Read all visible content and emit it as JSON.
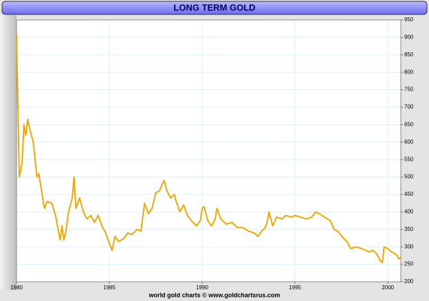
{
  "chart_data": {
    "type": "line",
    "title": "LONG TERM GOLD",
    "footer": "world gold charts © www.goldchartsrus.com",
    "color": "#f0a800",
    "grid": true,
    "xlim": [
      1980,
      2000.7
    ],
    "xticks": [
      1980,
      1985,
      1990,
      1995,
      2000
    ],
    "ylim": [
      200,
      950
    ],
    "yticks": [
      200,
      250,
      300,
      350,
      400,
      450,
      500,
      550,
      600,
      650,
      700,
      750,
      800,
      850,
      900,
      950
    ],
    "x": [
      1980.0,
      1980.15,
      1980.3,
      1980.4,
      1980.5,
      1980.6,
      1980.75,
      1980.9,
      1981.1,
      1981.2,
      1981.35,
      1981.5,
      1981.65,
      1981.9,
      1982.1,
      1982.35,
      1982.45,
      1982.55,
      1982.65,
      1982.8,
      1983.0,
      1983.1,
      1983.2,
      1983.4,
      1983.6,
      1983.8,
      1984.0,
      1984.2,
      1984.4,
      1984.6,
      1984.8,
      1985.0,
      1985.15,
      1985.3,
      1985.5,
      1985.8,
      1986.0,
      1986.2,
      1986.5,
      1986.7,
      1986.9,
      1987.1,
      1987.3,
      1987.5,
      1987.7,
      1987.85,
      1987.95,
      1988.1,
      1988.3,
      1988.5,
      1988.6,
      1988.8,
      1989.0,
      1989.2,
      1989.5,
      1989.7,
      1989.9,
      1990.0,
      1990.1,
      1990.3,
      1990.5,
      1990.7,
      1990.8,
      1991.0,
      1991.3,
      1991.6,
      1991.9,
      1992.2,
      1992.5,
      1992.8,
      1993.0,
      1993.2,
      1993.4,
      1993.5,
      1993.6,
      1993.8,
      1994.0,
      1994.3,
      1994.5,
      1994.8,
      1995.0,
      1995.3,
      1995.6,
      1995.9,
      1996.1,
      1996.3,
      1996.6,
      1996.9,
      1997.1,
      1997.3,
      1997.6,
      1997.8,
      1998.0,
      1998.3,
      1998.6,
      1998.8,
      1999.0,
      1999.2,
      1999.4,
      1999.6,
      1999.7,
      1999.8,
      2000.0,
      2000.2,
      2000.4,
      2000.5,
      2000.6,
      2000.7
    ],
    "values": [
      910,
      500,
      540,
      650,
      620,
      665,
      630,
      600,
      500,
      510,
      460,
      410,
      430,
      425,
      390,
      320,
      360,
      320,
      340,
      400,
      440,
      500,
      410,
      440,
      400,
      380,
      390,
      370,
      390,
      360,
      340,
      310,
      290,
      330,
      315,
      325,
      340,
      335,
      350,
      345,
      425,
      395,
      410,
      455,
      460,
      480,
      490,
      460,
      440,
      450,
      430,
      400,
      420,
      390,
      370,
      360,
      375,
      410,
      415,
      375,
      360,
      380,
      410,
      380,
      365,
      370,
      355,
      355,
      345,
      340,
      330,
      345,
      355,
      370,
      400,
      360,
      385,
      380,
      390,
      385,
      390,
      385,
      380,
      385,
      400,
      395,
      385,
      375,
      350,
      345,
      325,
      315,
      295,
      300,
      295,
      290,
      285,
      290,
      280,
      260,
      255,
      300,
      295,
      285,
      280,
      275,
      265,
      270
    ]
  }
}
